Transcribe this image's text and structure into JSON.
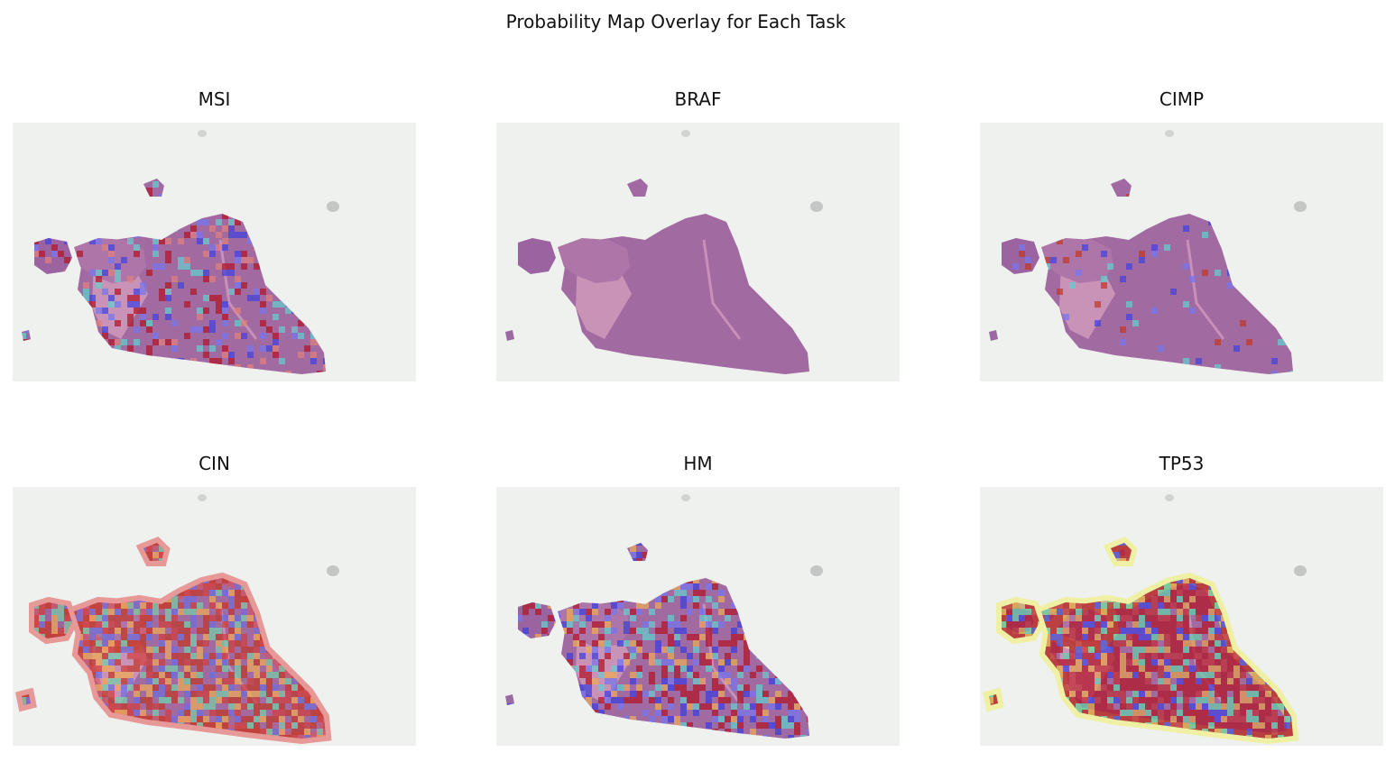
{
  "title": "Probability Map Overlay for Each Task",
  "panels": [
    {
      "title": "MSI"
    },
    {
      "title": "BRAF"
    },
    {
      "title": "CIMP"
    },
    {
      "title": "CIN"
    },
    {
      "title": "HM"
    },
    {
      "title": "TP53"
    }
  ]
}
